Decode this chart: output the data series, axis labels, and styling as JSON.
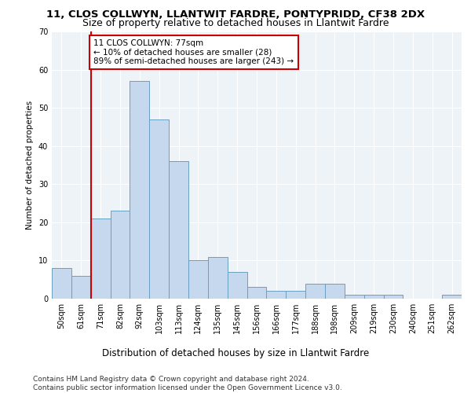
{
  "title1": "11, CLOS COLLWYN, LLANTWIT FARDRE, PONTYPRIDD, CF38 2DX",
  "title2": "Size of property relative to detached houses in Llantwit Fardre",
  "xlabel": "Distribution of detached houses by size in Llantwit Fardre",
  "ylabel": "Number of detached properties",
  "bar_labels": [
    "50sqm",
    "61sqm",
    "71sqm",
    "82sqm",
    "92sqm",
    "103sqm",
    "113sqm",
    "124sqm",
    "135sqm",
    "145sqm",
    "156sqm",
    "166sqm",
    "177sqm",
    "188sqm",
    "198sqm",
    "209sqm",
    "219sqm",
    "230sqm",
    "240sqm",
    "251sqm",
    "262sqm"
  ],
  "bar_values": [
    8,
    6,
    21,
    23,
    57,
    47,
    36,
    10,
    11,
    7,
    3,
    2,
    2,
    4,
    4,
    1,
    1,
    1,
    0,
    0,
    1
  ],
  "bar_color": "#c5d8ed",
  "bar_edge_color": "#6a9fc0",
  "property_line_bin": 1.5,
  "line_color": "#cc0000",
  "annotation_text": "11 CLOS COLLWYN: 77sqm\n← 10% of detached houses are smaller (28)\n89% of semi-detached houses are larger (243) →",
  "annotation_box_color": "#ffffff",
  "annotation_box_edge": "#cc0000",
  "ylim": [
    0,
    70
  ],
  "yticks": [
    0,
    10,
    20,
    30,
    40,
    50,
    60,
    70
  ],
  "footer": "Contains HM Land Registry data © Crown copyright and database right 2024.\nContains public sector information licensed under the Open Government Licence v3.0.",
  "bg_color": "#eef3f8",
  "grid_color": "#ffffff",
  "title1_fontsize": 9.5,
  "title2_fontsize": 9,
  "xlabel_fontsize": 8.5,
  "ylabel_fontsize": 7.5,
  "tick_fontsize": 7,
  "footer_fontsize": 6.5,
  "annot_fontsize": 7.5
}
